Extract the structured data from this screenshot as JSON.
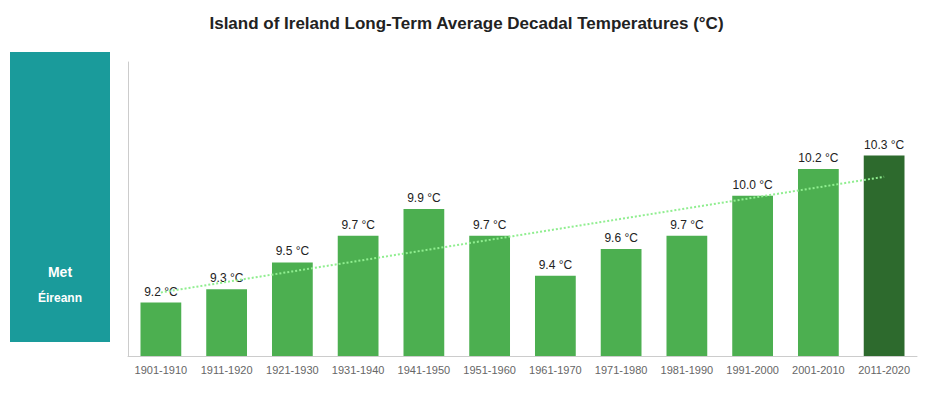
{
  "chart_data": {
    "type": "bar",
    "title": "Island of Ireland Long-Term Average Decadal Temperatures (°C)",
    "annotations": [
      "Met",
      "Éireann"
    ],
    "categories": [
      "1901-1910",
      "1911-1920",
      "1921-1930",
      "1931-1940",
      "1941-1950",
      "1951-1960",
      "1961-1970",
      "1971-1980",
      "1981-1990",
      "1991-2000",
      "2001-2010",
      "2011-2020"
    ],
    "series": [
      {
        "type": "bar",
        "values": [
          9.2,
          9.3,
          9.5,
          9.7,
          9.9,
          9.7,
          9.4,
          9.6,
          9.7,
          10.0,
          10.2,
          10.3
        ],
        "value_labels": [
          "9.2 °C",
          "9.3 °C",
          "9.5 °C",
          "9.7 °C",
          "9.9 °C",
          "9.7 °C",
          "9.4 °C",
          "9.6 °C",
          "9.7 °C",
          "10.0 °C",
          "10.2 °C",
          "10.3 °C"
        ],
        "colors": [
          "#4caf50",
          "#4caf50",
          "#4caf50",
          "#4caf50",
          "#4caf50",
          "#4caf50",
          "#4caf50",
          "#4caf50",
          "#4caf50",
          "#4caf50",
          "#4caf50",
          "#2d6a2d"
        ],
        "data_labels": true
      },
      {
        "type": "line",
        "values": [
          9.275641,
          9.354312,
          9.432984,
          9.511655,
          9.590326,
          9.668998,
          9.747669,
          9.82634,
          9.905012,
          9.983683,
          10.062354,
          10.141026
        ],
        "color": "#90ee90",
        "line_style": "dotted"
      }
    ],
    "ylim": [
      8.8,
      11.0
    ],
    "grid": false,
    "tick_labels": "x"
  }
}
